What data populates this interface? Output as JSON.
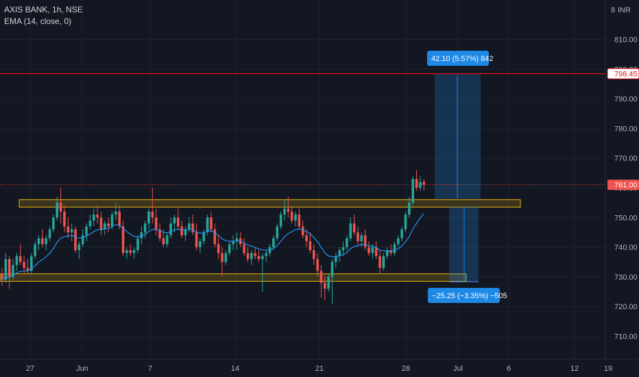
{
  "legend": {
    "symbol_line": "AXIS BANK, 1h, NSE",
    "indicator_line": "EMA (14, close, 0)"
  },
  "price_axis": {
    "currency": "INR",
    "currency_prefix": "8"
  },
  "markers": {
    "horizontal_line_value": "798.45",
    "last_price_value": "761.00"
  },
  "measurements": {
    "long": "42.10 (5.57%) 842",
    "short": "−25.25 (−3.35%) −505"
  },
  "colors": {
    "background": "#131722",
    "up_candle": "#26a69a",
    "down_candle": "#ef5350",
    "ema_line": "#2196f3",
    "zone": "#f0b90b",
    "horizontal_line": "#e0121a",
    "measure_box": "#1e88e5"
  },
  "chart_data": {
    "type": "candlestick",
    "symbol": "AXIS BANK",
    "timeframe": "1h",
    "exchange": "NSE",
    "indicator": "EMA (14, close, 0)",
    "ylim": [
      702,
      822
    ],
    "y_ticks": [
      "810.00",
      "800.00",
      "790.00",
      "780.00",
      "770.00",
      "760.00",
      "750.00",
      "740.00",
      "730.00",
      "720.00",
      "710.00"
    ],
    "x_ticks": [
      "27",
      "Jun",
      "7",
      "14",
      "21",
      "28",
      "Jul",
      "6",
      "12",
      "19"
    ],
    "grid": true,
    "legend_position": "top-left",
    "last_price": 761.0,
    "horizontal_line": 798.45,
    "resistance_zone": [
      753.5,
      756.0
    ],
    "support_zone": [
      728.5,
      731.0
    ],
    "long_target": {
      "from": 756.35,
      "to": 798.45,
      "label": "42.10 (5.57%) 842"
    },
    "short_target": {
      "from": 753.6,
      "to": 728.35,
      "label": "−25.25 (−3.35%) −505"
    },
    "candles": [
      [
        731,
        733,
        727,
        729
      ],
      [
        729,
        738,
        728,
        736
      ],
      [
        736,
        737,
        726,
        730
      ],
      [
        730,
        736,
        729,
        734
      ],
      [
        734,
        738,
        732,
        737
      ],
      [
        737,
        741,
        734,
        735
      ],
      [
        735,
        737,
        731,
        733
      ],
      [
        733,
        736,
        731,
        732
      ],
      [
        732,
        738,
        731,
        737
      ],
      [
        737,
        742,
        736,
        741
      ],
      [
        741,
        744,
        739,
        743
      ],
      [
        743,
        746,
        740,
        741
      ],
      [
        741,
        744,
        739,
        743
      ],
      [
        743,
        747,
        742,
        746
      ],
      [
        746,
        751,
        745,
        750
      ],
      [
        750,
        757,
        749,
        755
      ],
      [
        755,
        760,
        748,
        752
      ],
      [
        752,
        754,
        745,
        747
      ],
      [
        747,
        750,
        743,
        745
      ],
      [
        745,
        748,
        742,
        746
      ],
      [
        746,
        747,
        738,
        739
      ],
      [
        739,
        742,
        736,
        741
      ],
      [
        741,
        746,
        740,
        744
      ],
      [
        744,
        748,
        742,
        747
      ],
      [
        747,
        751,
        746,
        749
      ],
      [
        749,
        753,
        747,
        751
      ],
      [
        751,
        754,
        748,
        750
      ],
      [
        750,
        752,
        744,
        746
      ],
      [
        746,
        749,
        744,
        748
      ],
      [
        748,
        750,
        745,
        747
      ],
      [
        747,
        752,
        746,
        751
      ],
      [
        751,
        755,
        749,
        752
      ],
      [
        752,
        754,
        746,
        747
      ],
      [
        747,
        749,
        737,
        738
      ],
      [
        738,
        740,
        736,
        739
      ],
      [
        739,
        741,
        737,
        738
      ],
      [
        738,
        740,
        736,
        739
      ],
      [
        739,
        744,
        738,
        743
      ],
      [
        743,
        747,
        741,
        745
      ],
      [
        745,
        749,
        743,
        748
      ],
      [
        748,
        753,
        746,
        752
      ],
      [
        752,
        760,
        748,
        750
      ],
      [
        750,
        753,
        744,
        746
      ],
      [
        746,
        748,
        742,
        743
      ],
      [
        743,
        746,
        740,
        741
      ],
      [
        741,
        745,
        740,
        744
      ],
      [
        744,
        750,
        743,
        748
      ],
      [
        748,
        751,
        745,
        750
      ],
      [
        750,
        753,
        746,
        747
      ],
      [
        747,
        749,
        743,
        744
      ],
      [
        744,
        747,
        742,
        746
      ],
      [
        746,
        750,
        745,
        748
      ],
      [
        748,
        751,
        744,
        745
      ],
      [
        745,
        748,
        739,
        740
      ],
      [
        740,
        743,
        738,
        742
      ],
      [
        742,
        746,
        741,
        745
      ],
      [
        745,
        751,
        744,
        750
      ],
      [
        750,
        752,
        745,
        746
      ],
      [
        746,
        748,
        740,
        741
      ],
      [
        741,
        744,
        736,
        738
      ],
      [
        738,
        740,
        730,
        735
      ],
      [
        735,
        739,
        734,
        738
      ],
      [
        738,
        742,
        737,
        741
      ],
      [
        741,
        744,
        739,
        742
      ],
      [
        742,
        745,
        739,
        743
      ],
      [
        743,
        745,
        740,
        741
      ],
      [
        741,
        743,
        737,
        738
      ],
      [
        738,
        740,
        735,
        736
      ],
      [
        736,
        739,
        734,
        738
      ],
      [
        738,
        740,
        736,
        737
      ],
      [
        737,
        739,
        735,
        736
      ],
      [
        736,
        738,
        725,
        737
      ],
      [
        737,
        739,
        735,
        738
      ],
      [
        738,
        741,
        737,
        740
      ],
      [
        740,
        744,
        739,
        743
      ],
      [
        743,
        748,
        742,
        747
      ],
      [
        747,
        752,
        746,
        751
      ],
      [
        751,
        756,
        749,
        753
      ],
      [
        753,
        757,
        750,
        752
      ],
      [
        752,
        754,
        748,
        749
      ],
      [
        749,
        752,
        747,
        751
      ],
      [
        751,
        753,
        746,
        747
      ],
      [
        747,
        749,
        743,
        744
      ],
      [
        744,
        746,
        740,
        742
      ],
      [
        742,
        745,
        738,
        739
      ],
      [
        739,
        741,
        734,
        736
      ],
      [
        736,
        738,
        730,
        732
      ],
      [
        732,
        734,
        723,
        728
      ],
      [
        728,
        730,
        722,
        726
      ],
      [
        726,
        731,
        725,
        730
      ],
      [
        730,
        736,
        721,
        735
      ],
      [
        735,
        738,
        733,
        737
      ],
      [
        737,
        740,
        735,
        739
      ],
      [
        739,
        742,
        737,
        740
      ],
      [
        740,
        744,
        739,
        743
      ],
      [
        743,
        750,
        742,
        748
      ],
      [
        748,
        751,
        744,
        745
      ],
      [
        745,
        747,
        741,
        742
      ],
      [
        742,
        745,
        740,
        744
      ],
      [
        744,
        746,
        739,
        740
      ],
      [
        740,
        742,
        737,
        738
      ],
      [
        738,
        741,
        736,
        740
      ],
      [
        740,
        742,
        736,
        737
      ],
      [
        737,
        739,
        731,
        733
      ],
      [
        733,
        738,
        732,
        737
      ],
      [
        737,
        740,
        736,
        739
      ],
      [
        739,
        741,
        737,
        738
      ],
      [
        738,
        742,
        737,
        741
      ],
      [
        741,
        744,
        740,
        743
      ],
      [
        743,
        747,
        742,
        746
      ],
      [
        746,
        752,
        745,
        751
      ],
      [
        751,
        757,
        750,
        755
      ],
      [
        755,
        764,
        754,
        763
      ],
      [
        763,
        766,
        759,
        760
      ],
      [
        760,
        764,
        759,
        762
      ],
      [
        762,
        763,
        759,
        761
      ]
    ]
  }
}
